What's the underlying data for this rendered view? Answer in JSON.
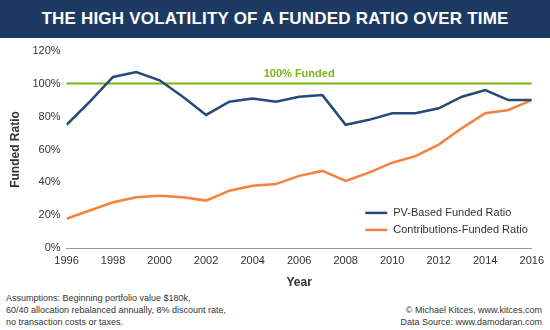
{
  "chart_data": {
    "type": "line",
    "title": "THE HIGH VOLATILITY OF A FUNDED RATIO OVER TIME",
    "x_label": "Year",
    "y_label": "Funded Ratio",
    "x": [
      1996,
      1997,
      1998,
      1999,
      2000,
      2001,
      2002,
      2003,
      2004,
      2005,
      2006,
      2007,
      2008,
      2009,
      2010,
      2011,
      2012,
      2013,
      2014,
      2015,
      2016
    ],
    "series": [
      {
        "name": "PV-Based Funded Ratio",
        "color": "#234b78",
        "values": [
          75,
          89,
          104,
          107,
          102,
          92,
          81,
          89,
          91,
          89,
          92,
          93,
          75,
          78,
          82,
          82,
          85,
          92,
          96,
          90,
          90
        ]
      },
      {
        "name": "Contributions-Funded Ratio",
        "color": "#f5823a",
        "values": [
          18,
          23,
          28,
          31,
          32,
          31,
          29,
          35,
          38,
          39,
          44,
          47,
          41,
          46,
          52,
          56,
          63,
          73,
          82,
          84,
          90
        ]
      }
    ],
    "xlim": [
      1996,
      2016
    ],
    "xticks": [
      1996,
      1998,
      2000,
      2002,
      2004,
      2006,
      2008,
      2010,
      2012,
      2014,
      2016
    ],
    "ylim": [
      0,
      120
    ],
    "yticks": [
      {
        "value": 0,
        "label": "0%"
      },
      {
        "value": 20,
        "label": "20%"
      },
      {
        "value": 40,
        "label": "40%"
      },
      {
        "value": 60,
        "label": "60%"
      },
      {
        "value": 80,
        "label": "80%"
      },
      {
        "value": 100,
        "label": "100%"
      },
      {
        "value": 120,
        "label": "120%"
      }
    ],
    "grid": false,
    "legend": "lower right",
    "reference_line": {
      "value": 100,
      "label": "100% Funded",
      "color": "#7ab317"
    },
    "notes": [
      "Assumptions: Beginning portfolio value $180k,",
      "60/40 allocation rebalanced annually, 8% discount rate,",
      "no transaction costs or taxes."
    ],
    "credits": [
      "© Michael Kitces, www.kitces.com",
      "Data Source: www.damodaran.com"
    ]
  }
}
